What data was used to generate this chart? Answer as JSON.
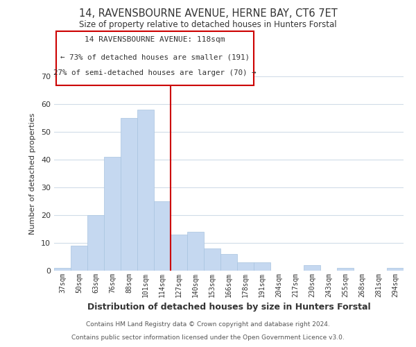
{
  "title": "14, RAVENSBOURNE AVENUE, HERNE BAY, CT6 7ET",
  "subtitle": "Size of property relative to detached houses in Hunters Forstal",
  "xlabel": "Distribution of detached houses by size in Hunters Forstal",
  "ylabel": "Number of detached properties",
  "bar_labels": [
    "37sqm",
    "50sqm",
    "63sqm",
    "76sqm",
    "88sqm",
    "101sqm",
    "114sqm",
    "127sqm",
    "140sqm",
    "153sqm",
    "166sqm",
    "178sqm",
    "191sqm",
    "204sqm",
    "217sqm",
    "230sqm",
    "243sqm",
    "255sqm",
    "268sqm",
    "281sqm",
    "294sqm"
  ],
  "bar_values": [
    1,
    9,
    20,
    41,
    55,
    58,
    25,
    13,
    14,
    8,
    6,
    3,
    3,
    0,
    0,
    2,
    0,
    1,
    0,
    0,
    1
  ],
  "highlight_index": 6,
  "bar_color": "#c5d8f0",
  "vline_color": "#cc0000",
  "ylim": [
    0,
    70
  ],
  "yticks": [
    0,
    10,
    20,
    30,
    40,
    50,
    60,
    70
  ],
  "annotation_title": "14 RAVENSBOURNE AVENUE: 118sqm",
  "annotation_line1": "← 73% of detached houses are smaller (191)",
  "annotation_line2": "27% of semi-detached houses are larger (70) →",
  "footer1": "Contains HM Land Registry data © Crown copyright and database right 2024.",
  "footer2": "Contains public sector information licensed under the Open Government Licence v3.0.",
  "bg_color": "#ffffff",
  "grid_color": "#d0dce8",
  "box_edge_color": "#cc0000"
}
